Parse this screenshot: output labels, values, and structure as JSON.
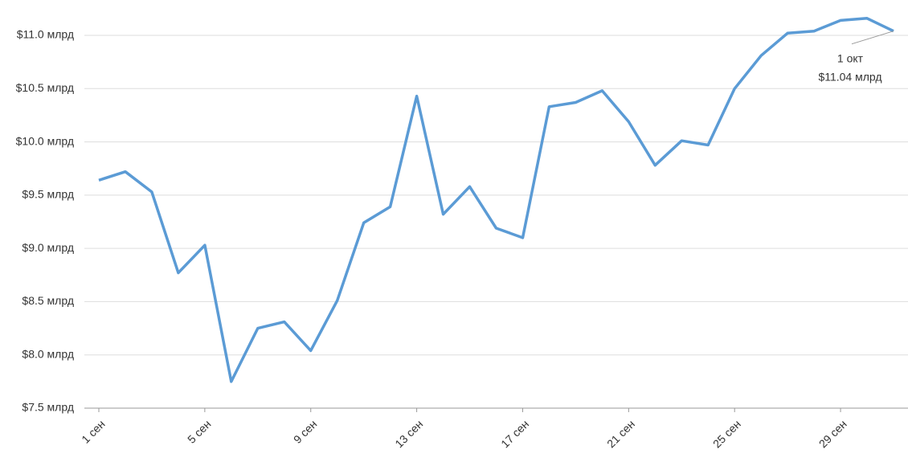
{
  "chart_data": {
    "type": "line",
    "categories": [
      "1 сен",
      null,
      null,
      null,
      "5 сен",
      null,
      null,
      null,
      "9 сен",
      null,
      null,
      null,
      "13 сен",
      null,
      null,
      null,
      "17 сен",
      null,
      null,
      null,
      "21 сен",
      null,
      null,
      null,
      "25 сен",
      null,
      null,
      null,
      "29 сен",
      null,
      null
    ],
    "values": [
      9.64,
      9.72,
      9.53,
      8.77,
      9.03,
      7.75,
      8.25,
      8.31,
      8.04,
      8.51,
      9.24,
      9.39,
      10.43,
      9.32,
      9.58,
      9.19,
      9.1,
      10.33,
      10.37,
      10.48,
      10.19,
      9.78,
      10.01,
      9.97,
      10.5,
      10.81,
      11.02,
      11.04,
      11.14,
      11.16,
      11.04
    ],
    "color": "#5b9bd5",
    "ylim": [
      7.5,
      11.0
    ],
    "yticks": [
      {
        "value": 7.5,
        "label": "$7.5 млрд"
      },
      {
        "value": 8.0,
        "label": "$8.0 млрд"
      },
      {
        "value": 8.5,
        "label": "$8.5 млрд"
      },
      {
        "value": 9.0,
        "label": "$9.0 млрд"
      },
      {
        "value": 9.5,
        "label": "$9.5 млрд"
      },
      {
        "value": 10.0,
        "label": "$10.0 млрд"
      },
      {
        "value": 10.5,
        "label": "$10.5 млрд"
      },
      {
        "value": 11.0,
        "label": "$11.0 млрд"
      }
    ],
    "grid": true,
    "annotation": {
      "index": 30,
      "lines": [
        "1 окт",
        "$11.04 млрд"
      ]
    }
  }
}
